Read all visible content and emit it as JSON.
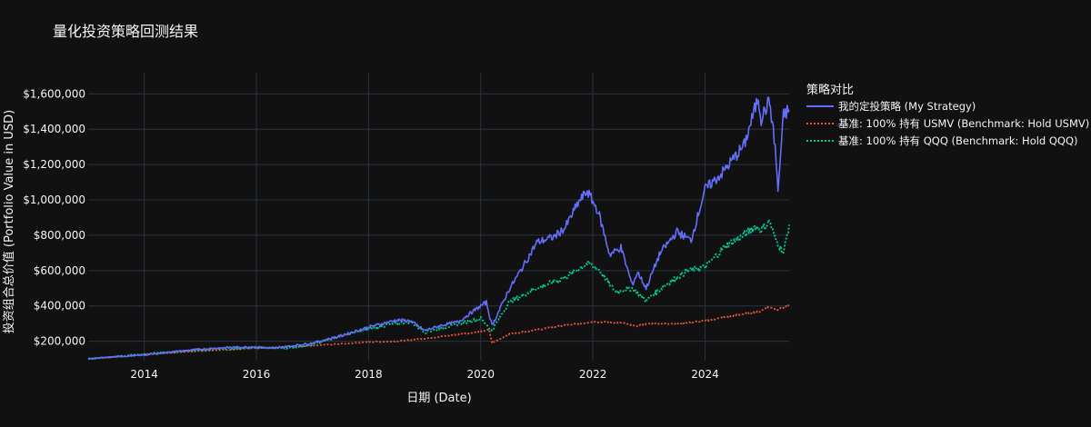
{
  "chart_data": {
    "type": "line",
    "title": "量化投资策略回测结果",
    "xlabel": "日期 (Date)",
    "ylabel": "投资组合总价值 (Portfolio Value in USD)",
    "xlim": [
      2013.0,
      2025.5
    ],
    "ylim": [
      90000,
      1720000
    ],
    "x_ticks": [
      2014,
      2016,
      2018,
      2020,
      2022,
      2024
    ],
    "x_tick_labels": [
      "2014",
      "2016",
      "2018",
      "2020",
      "2022",
      "2024"
    ],
    "y_ticks": [
      200000,
      400000,
      600000,
      800000,
      1000000,
      1200000,
      1400000,
      1600000
    ],
    "y_tick_labels": [
      "$200,000",
      "$400,000",
      "$600,000",
      "$800,000",
      "$1,000,000",
      "$1,200,000",
      "$1,400,000",
      "$1,600,000"
    ],
    "grid": true,
    "legend_title": "策略对比",
    "legend_position": "right",
    "colors": {
      "background": "#111111",
      "grid": "#283442",
      "text": "#f2f5fa"
    },
    "series": [
      {
        "name": "我的定投策略 (My Strategy)",
        "color": "#636efa",
        "dash": "solid",
        "x": [
          2013.0,
          2013.5,
          2014.0,
          2014.5,
          2015.0,
          2015.5,
          2016.0,
          2016.3,
          2016.6,
          2017.0,
          2017.5,
          2018.0,
          2018.5,
          2018.75,
          2019.0,
          2019.3,
          2019.6,
          2020.0,
          2020.1,
          2020.2,
          2020.25,
          2020.5,
          2020.75,
          2021.0,
          2021.3,
          2021.5,
          2021.75,
          2021.9,
          2022.1,
          2022.3,
          2022.5,
          2022.7,
          2022.8,
          2022.95,
          2023.2,
          2023.5,
          2023.75,
          2024.0,
          2024.3,
          2024.5,
          2024.7,
          2024.95,
          2025.0,
          2025.15,
          2025.25,
          2025.3,
          2025.4,
          2025.5
        ],
        "y": [
          100000,
          112000,
          122000,
          140000,
          155000,
          165000,
          168000,
          160000,
          172000,
          190000,
          230000,
          280000,
          320000,
          315000,
          260000,
          290000,
          310000,
          400000,
          420000,
          290000,
          320000,
          490000,
          620000,
          760000,
          790000,
          840000,
          990000,
          1050000,
          930000,
          690000,
          730000,
          520000,
          590000,
          500000,
          700000,
          820000,
          770000,
          1060000,
          1150000,
          1230000,
          1310000,
          1580000,
          1460000,
          1560000,
          1300000,
          1050000,
          1480000,
          1510000
        ]
      },
      {
        "name": "基准: 100% 持有 USMV (Benchmark: Hold USMV)",
        "color": "#ef553b",
        "dash": "dot",
        "x": [
          2013.0,
          2014.0,
          2015.0,
          2016.0,
          2016.5,
          2017.0,
          2018.0,
          2018.5,
          2019.0,
          2019.5,
          2020.0,
          2020.15,
          2020.2,
          2020.5,
          2021.0,
          2021.5,
          2022.0,
          2022.5,
          2022.75,
          2023.0,
          2023.5,
          2024.0,
          2024.5,
          2025.0,
          2025.1,
          2025.3,
          2025.5
        ],
        "y": [
          100000,
          125000,
          145000,
          160000,
          170000,
          175000,
          195000,
          200000,
          215000,
          235000,
          255000,
          265000,
          190000,
          240000,
          265000,
          290000,
          310000,
          305000,
          285000,
          300000,
          300000,
          315000,
          345000,
          370000,
          395000,
          380000,
          400000
        ]
      },
      {
        "name": "基准: 100% 持有 QQQ (Benchmark: Hold QQQ)",
        "color": "#00cc96",
        "dash": "dot",
        "x": [
          2013.0,
          2014.0,
          2015.0,
          2016.0,
          2016.5,
          2017.0,
          2017.5,
          2018.0,
          2018.5,
          2018.75,
          2019.0,
          2019.5,
          2020.0,
          2020.2,
          2020.5,
          2021.0,
          2021.5,
          2021.9,
          2022.1,
          2022.4,
          2022.7,
          2022.95,
          2023.3,
          2023.7,
          2024.0,
          2024.4,
          2024.6,
          2024.9,
          2025.0,
          2025.15,
          2025.25,
          2025.4,
          2025.5
        ],
        "y": [
          100000,
          128000,
          150000,
          165000,
          160000,
          180000,
          230000,
          270000,
          300000,
          310000,
          250000,
          290000,
          330000,
          260000,
          420000,
          500000,
          560000,
          640000,
          610000,
          480000,
          500000,
          430000,
          520000,
          600000,
          620000,
          750000,
          780000,
          850000,
          830000,
          880000,
          780000,
          700000,
          860000
        ]
      }
    ]
  }
}
